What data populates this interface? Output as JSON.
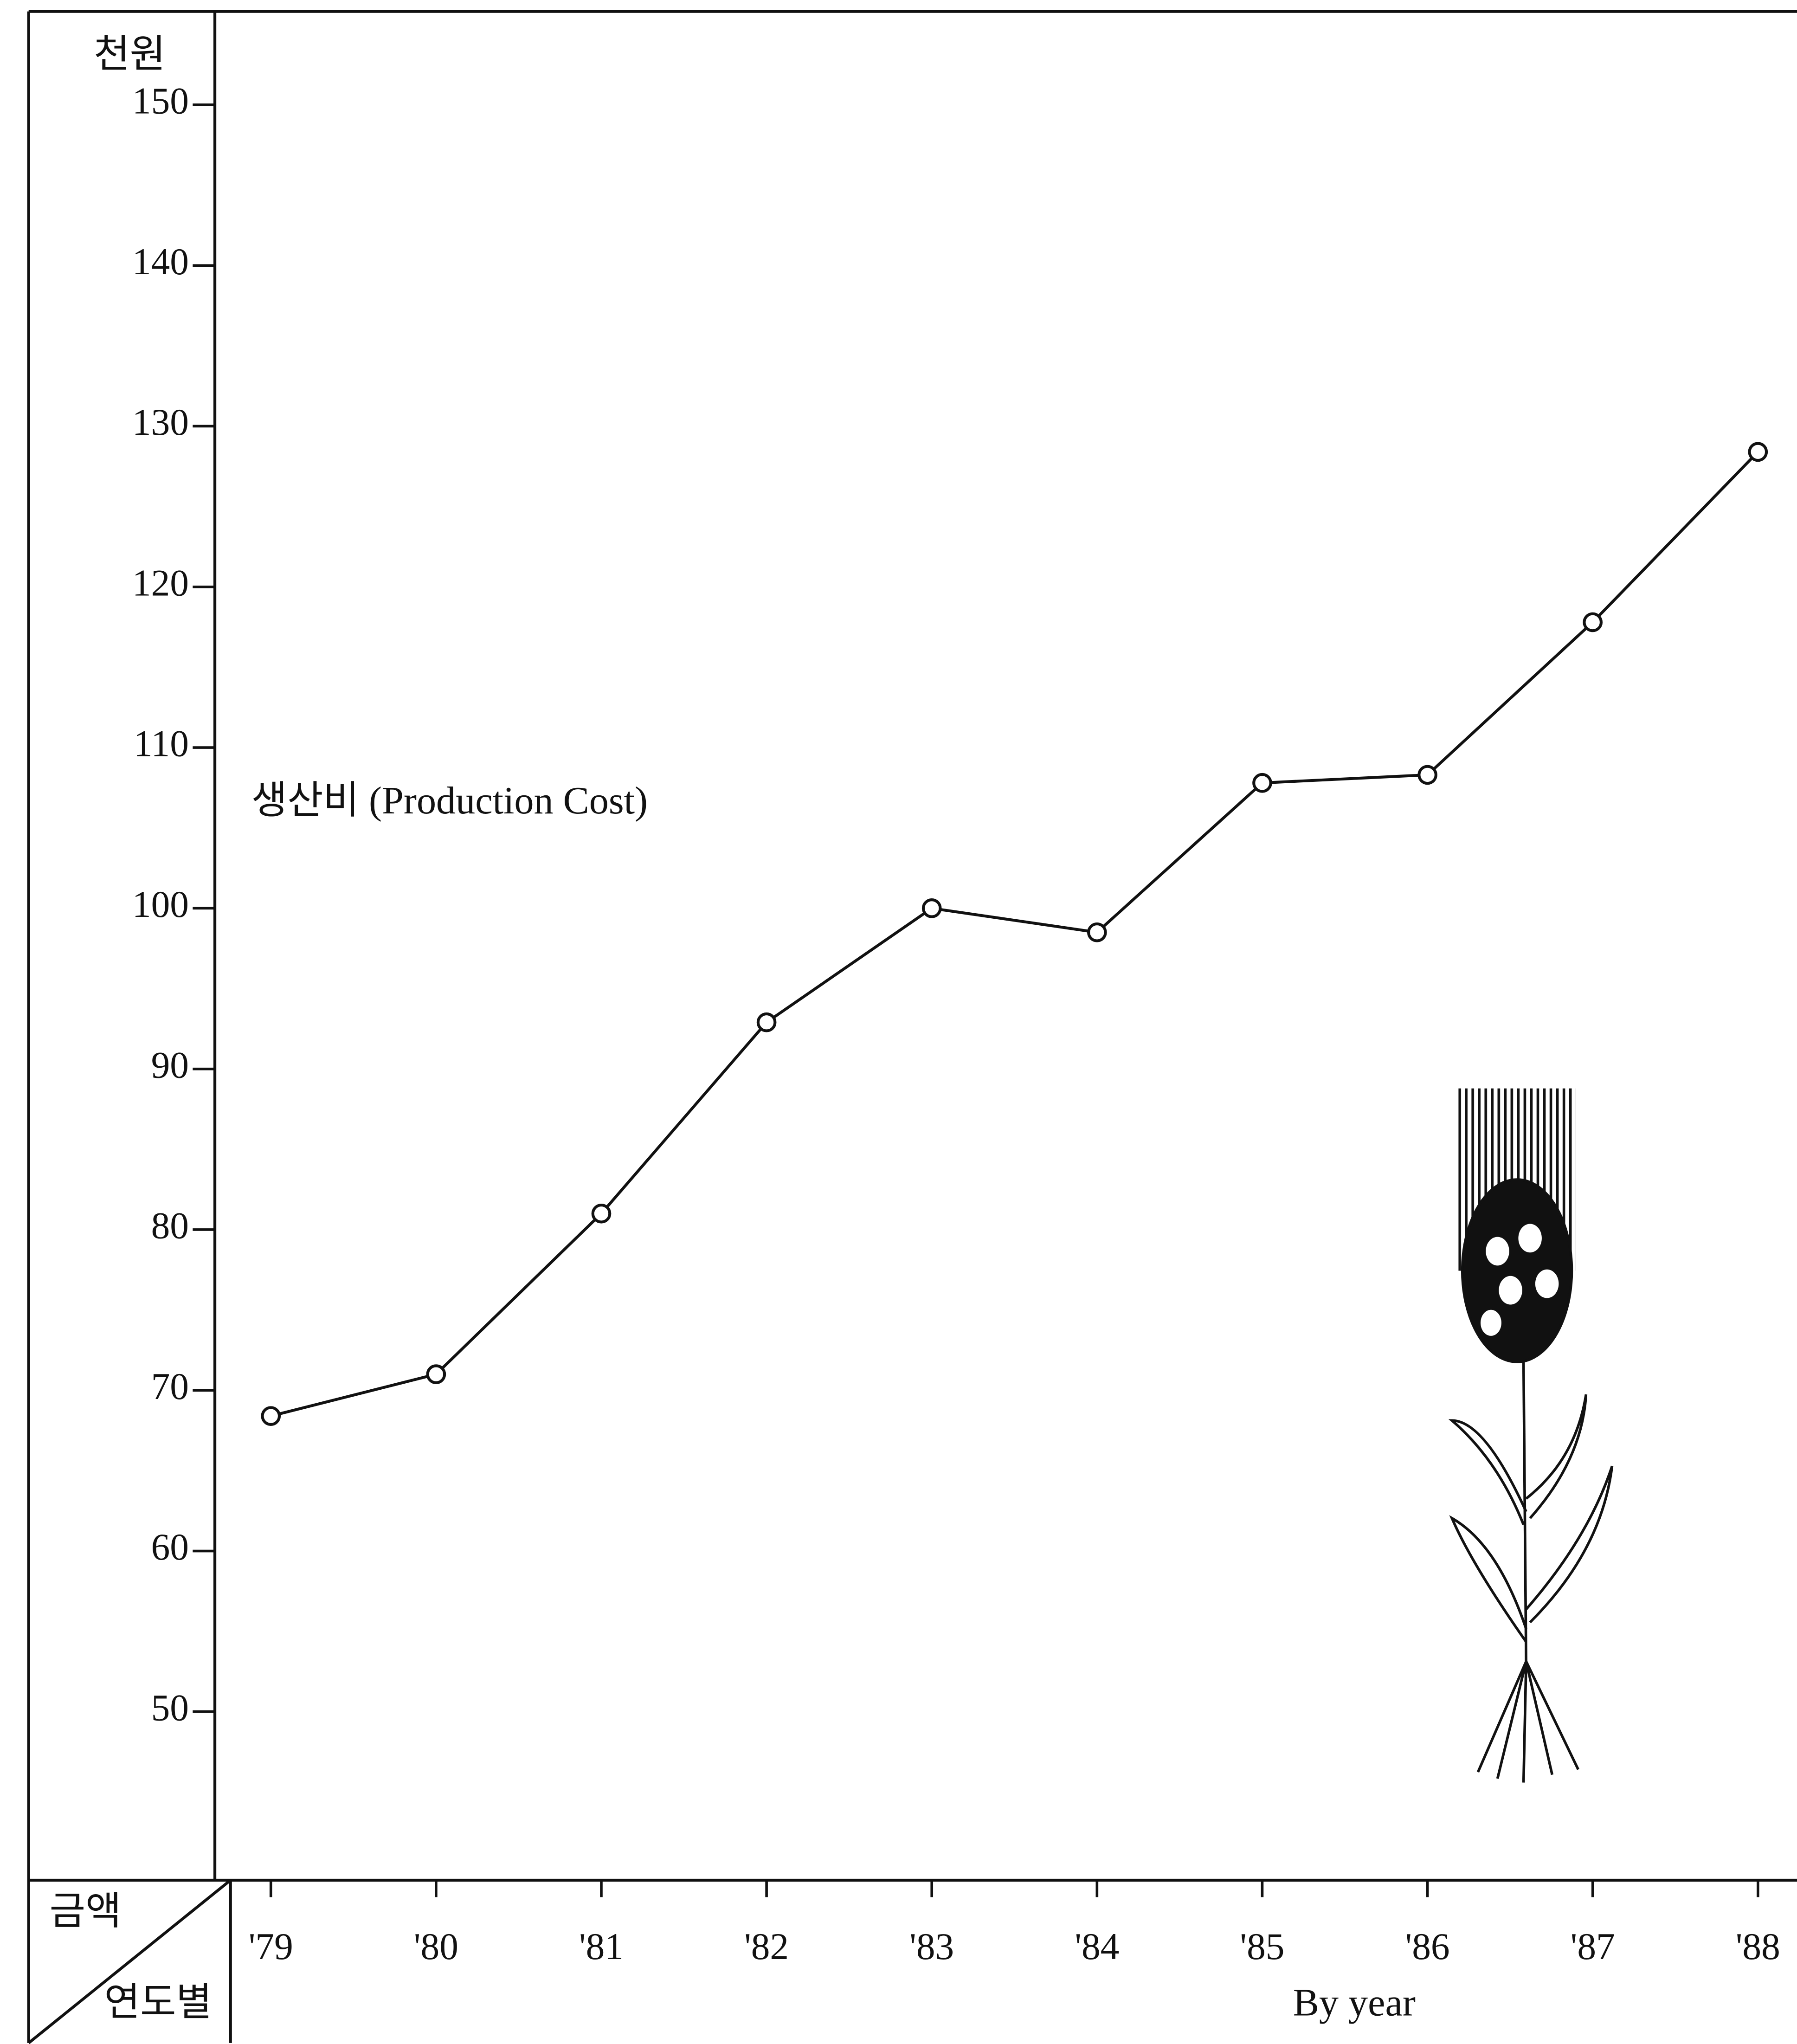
{
  "chart_data": {
    "type": "line",
    "y_unit": "천원",
    "corner_top": "금액",
    "corner_bottom": "연도별",
    "x_label": "By year",
    "categories": [
      "'79",
      "'80",
      "'81",
      "'82",
      "'83",
      "'84",
      "'85",
      "'86",
      "'87",
      "'88"
    ],
    "series": [
      {
        "name": "생산비 (Production Cost)",
        "color": "#111111",
        "values": [
          68.4,
          71.0,
          81.0,
          92.9,
          100.0,
          98.5,
          107.8,
          108.3,
          117.8,
          128.4
        ]
      }
    ],
    "ylim": [
      40,
      155
    ],
    "yticks": [
      50,
      60,
      70,
      80,
      90,
      100,
      110,
      120,
      130,
      140,
      150
    ],
    "grid": false
  }
}
